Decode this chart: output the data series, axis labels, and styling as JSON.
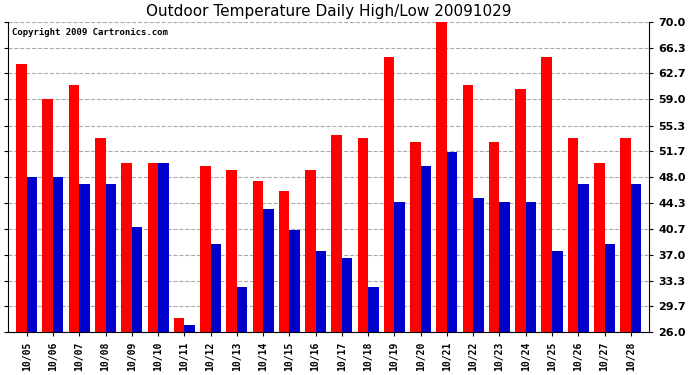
{
  "title": "Outdoor Temperature Daily High/Low 20091029",
  "copyright": "Copyright 2009 Cartronics.com",
  "dates": [
    "10/05",
    "10/06",
    "10/07",
    "10/08",
    "10/09",
    "10/10",
    "10/11",
    "10/12",
    "10/13",
    "10/14",
    "10/15",
    "10/16",
    "10/17",
    "10/18",
    "10/19",
    "10/20",
    "10/21",
    "10/22",
    "10/23",
    "10/24",
    "10/25",
    "10/26",
    "10/27",
    "10/28"
  ],
  "highs": [
    64.0,
    59.0,
    61.0,
    53.5,
    50.0,
    50.0,
    28.0,
    49.5,
    49.0,
    47.5,
    46.0,
    49.0,
    54.0,
    53.5,
    65.0,
    53.0,
    70.5,
    61.0,
    53.0,
    60.5,
    65.0,
    53.5,
    50.0,
    53.5
  ],
  "lows": [
    48.0,
    48.0,
    47.0,
    47.0,
    41.0,
    50.0,
    27.0,
    38.5,
    32.5,
    43.5,
    40.5,
    37.5,
    36.5,
    32.5,
    44.5,
    49.5,
    51.5,
    45.0,
    44.5,
    44.5,
    37.5,
    47.0,
    38.5,
    47.0
  ],
  "high_color": "#ff0000",
  "low_color": "#0000cc",
  "bg_color": "#ffffff",
  "grid_color": "#aaaaaa",
  "yticks": [
    26.0,
    29.7,
    33.3,
    37.0,
    40.7,
    44.3,
    48.0,
    51.7,
    55.3,
    59.0,
    62.7,
    66.3,
    70.0
  ],
  "ymin": 26.0,
  "ymax": 70.0,
  "bar_width": 0.4
}
